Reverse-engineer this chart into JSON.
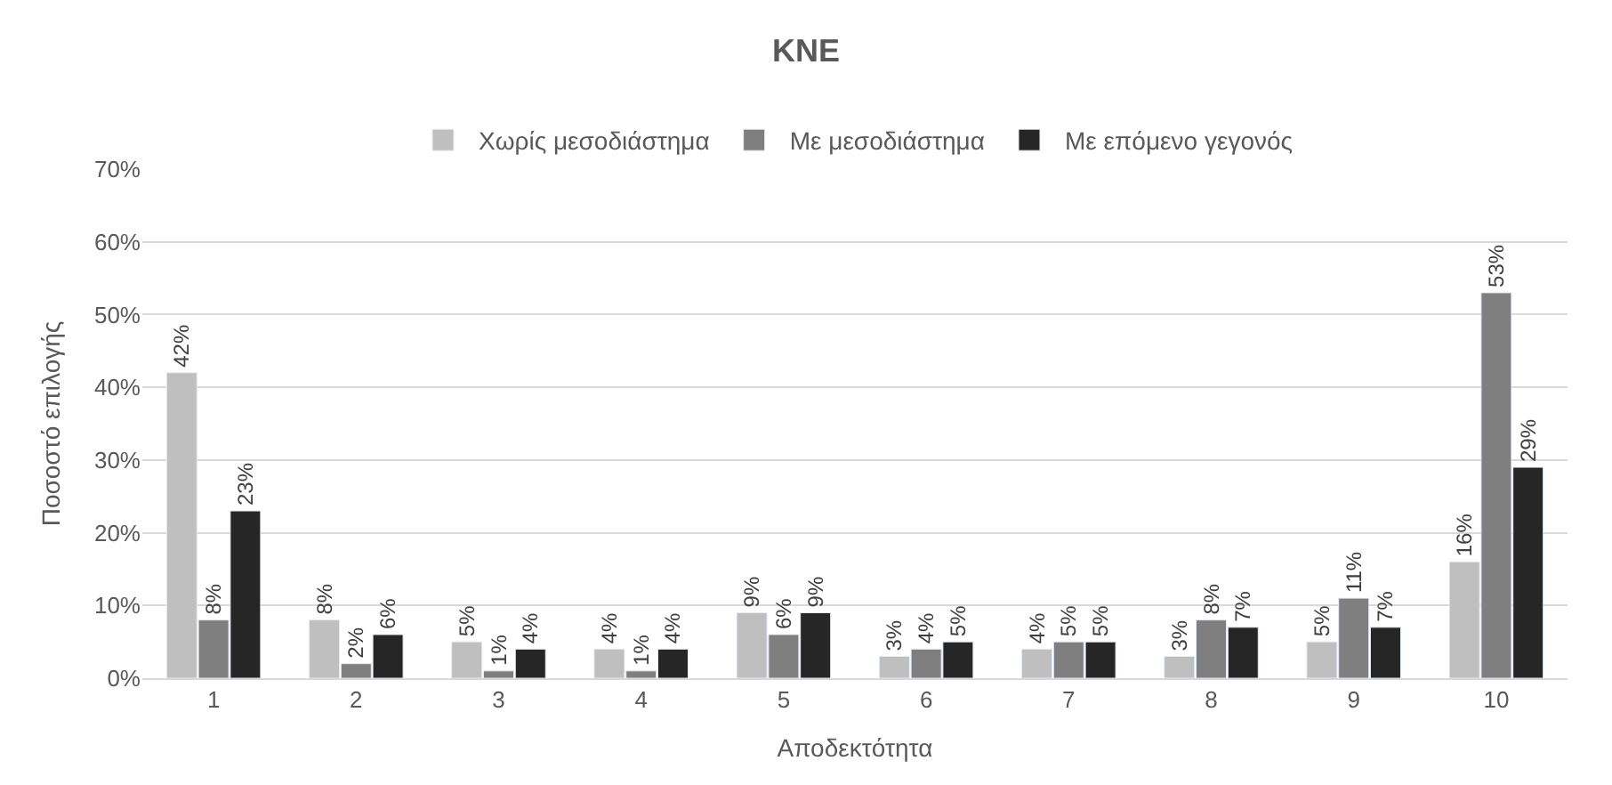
{
  "chart_data": {
    "type": "bar",
    "title": "KNE",
    "xlabel": "Αποδεκτότητα",
    "ylabel": "Ποσοστό επιλογής",
    "categories": [
      "1",
      "2",
      "3",
      "4",
      "5",
      "6",
      "7",
      "8",
      "9",
      "10"
    ],
    "series": [
      {
        "name": "Χωρίς μεσοδιάστημα",
        "color": "#bfbfbf",
        "values": [
          42,
          8,
          5,
          4,
          9,
          3,
          4,
          3,
          5,
          16
        ],
        "value_labels": [
          "42%",
          "8%",
          "5%",
          "4%",
          "9%",
          "3%",
          "4%",
          "3%",
          "5%",
          "16%"
        ]
      },
      {
        "name": "Με μεσοδιάστημα",
        "color": "#7f7f7f",
        "values": [
          8,
          2,
          1,
          1,
          6,
          4,
          5,
          8,
          11,
          53
        ],
        "value_labels": [
          "8%",
          "2%",
          "1%",
          "1%",
          "6%",
          "4%",
          "5%",
          "8%",
          "11%",
          "53%"
        ]
      },
      {
        "name": "Με επόμενο γεγονός",
        "color": "#262626",
        "values": [
          23,
          6,
          4,
          4,
          9,
          5,
          5,
          7,
          7,
          29
        ],
        "value_labels": [
          "23%",
          "6%",
          "4%",
          "4%",
          "9%",
          "5%",
          "5%",
          "7%",
          "7%",
          "29%"
        ]
      }
    ],
    "ylim": [
      0,
      70
    ],
    "yticks": [
      {
        "value": 0,
        "label": "0%"
      },
      {
        "value": 10,
        "label": "10%"
      },
      {
        "value": 20,
        "label": "20%"
      },
      {
        "value": 30,
        "label": "30%"
      },
      {
        "value": 40,
        "label": "40%"
      },
      {
        "value": 50,
        "label": "50%"
      },
      {
        "value": 60,
        "label": "60%"
      },
      {
        "value": 70,
        "label": "70%"
      }
    ],
    "grid": "y",
    "legend": "top"
  }
}
